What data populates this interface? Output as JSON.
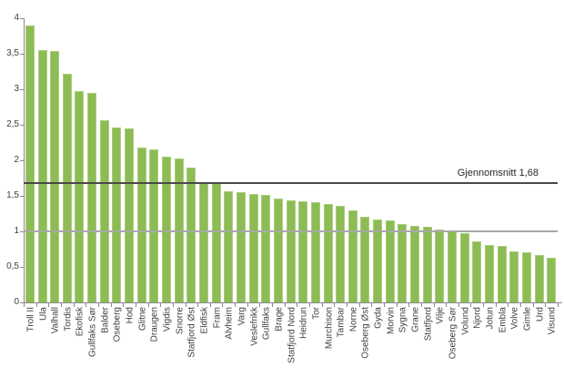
{
  "chart_data": {
    "type": "bar",
    "title": "",
    "categories": [
      "Troll II",
      "Ula",
      "Valhall",
      "Tordis",
      "Ekofisk",
      "Gullfaks Sør",
      "Balder",
      "Oseberg",
      "Hod",
      "Glitne",
      "Draugen",
      "Vigdis",
      "Snorre",
      "Statfjord Øst",
      "Eldfisk",
      "Fram",
      "Alvheim",
      "Varg",
      "Veslefrikk",
      "Gullfaks",
      "Brage",
      "Statfjord Nord",
      "Heidrun",
      "Tor",
      "Murchison",
      "Tambar",
      "Norne",
      "Oseberg Øst",
      "Gyda",
      "Morvin",
      "Sygna",
      "Grane",
      "Statfjord",
      "Vilje",
      "Oseberg Sør",
      "Volund",
      "Njord",
      "Jotun",
      "Embla",
      "Volve",
      "Gimle",
      "Urd",
      "Visund"
    ],
    "values": [
      3.9,
      3.55,
      3.54,
      3.22,
      2.97,
      2.95,
      2.56,
      2.46,
      2.45,
      2.18,
      2.16,
      2.05,
      2.03,
      1.9,
      1.69,
      1.68,
      1.56,
      1.55,
      1.52,
      1.51,
      1.46,
      1.44,
      1.42,
      1.41,
      1.38,
      1.36,
      1.3,
      1.21,
      1.17,
      1.16,
      1.1,
      1.08,
      1.06,
      1.02,
      1.01,
      0.97,
      0.86,
      0.81,
      0.8,
      0.72,
      0.7,
      0.67,
      0.63
    ],
    "xlabel": "",
    "ylabel": "",
    "ylim": [
      0,
      4
    ],
    "y_axis": {
      "min": 0,
      "max": 4,
      "step": 0.5,
      "tick_labels": [
        "0",
        "0,5",
        "1",
        "1,5",
        "2",
        "2,5",
        "3",
        "3,5",
        "4"
      ]
    },
    "x_axis": {
      "label_rotation": -90
    },
    "average_line": {
      "value": 1.68,
      "label": "Gjennomsnitt 1,68"
    },
    "reference_line": {
      "value": 1.0
    },
    "legend": {
      "visible": false
    },
    "grid": "single gray reference line at 1,0; dark average line at 1,68",
    "colors": {
      "bar_fill": "#8dbb54",
      "bar_border": "#a9ce7c",
      "average_line": "#4a4a4a",
      "reference_line": "#a8a8a8",
      "axis": "#898989",
      "text": "#3f3f3f"
    }
  }
}
